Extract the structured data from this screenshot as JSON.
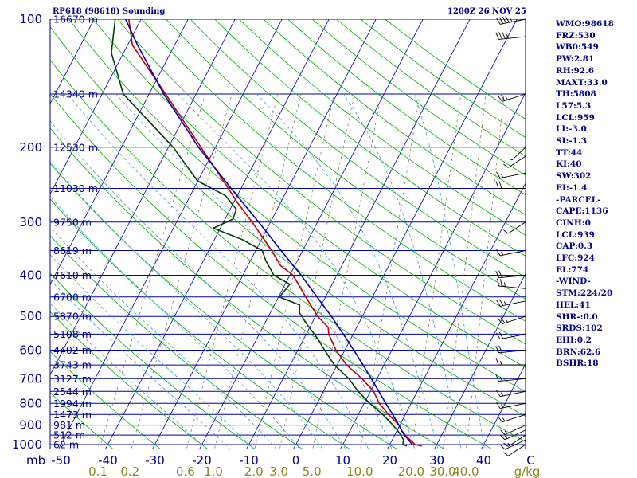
{
  "header": {
    "station": "RP618 (98618) Sounding",
    "time": "1200Z 26 NOV 25"
  },
  "params": [
    "WMO:98618",
    "FRZ:530",
    "WB0:549",
    "PW:2.81",
    "RH:92.6",
    "MAXT:33.0",
    "TH:5808",
    "L57:5.3",
    "LCL:959",
    "LI:-3.0",
    "SI:-1.3",
    "TT:44",
    "KI:40",
    "SW:302",
    "EI:-1.4",
    "-PARCEL-",
    "CAPE:1136",
    "CINH:0",
    "LCL:939",
    "CAP:0.3",
    "LFC:924",
    "EL:774",
    "-WIND-",
    "STM:224/20",
    "HEL:41",
    "SHR-:0.0",
    "SRDS:102",
    "EHI:0.2",
    "BRN:62.6",
    "BSHR:18"
  ],
  "colors": {
    "isobar": "#0000a0",
    "skew_isotherm": "#0000a0",
    "dry_adiabat": "#00b000",
    "moist_adiabat": "#40a0d0",
    "mixing_ratio": "#808060",
    "temperature": "#c00000",
    "dewpoint": "#004000",
    "parcel": "#0000b0",
    "label_blue": "#000080",
    "label_olive": "#888820"
  },
  "chart_data": {
    "type": "line",
    "ylabel": "mb",
    "xlabel": "",
    "pressure_ticks": [
      100,
      200,
      300,
      400,
      500,
      600,
      700,
      800,
      900,
      1000
    ],
    "temperature_ticks": [
      -50,
      -40,
      -30,
      -20,
      -10,
      0,
      10,
      20,
      30,
      40,
      50
    ],
    "temperature_tick_labels": [
      "-50",
      "-40",
      "-30",
      "-20",
      "-10",
      "0",
      "10",
      "20",
      "30",
      "40",
      "C"
    ],
    "mixing_ratio_tick_labels": [
      "0.1",
      "0.2",
      "0.6",
      "1.0",
      "2.0",
      "3.0",
      "5.0",
      "10.0",
      "20.0",
      "30.0",
      "40.0",
      "g/kg"
    ],
    "heights": [
      {
        "p": 100,
        "label": "16670 m"
      },
      {
        "p": 150,
        "label": "14340 m"
      },
      {
        "p": 200,
        "label": "12530 m"
      },
      {
        "p": 250,
        "label": "11030 m"
      },
      {
        "p": 300,
        "label": "9750 m"
      },
      {
        "p": 350,
        "label": "8619 m"
      },
      {
        "p": 400,
        "label": "7610 m"
      },
      {
        "p": 450,
        "label": "6700 m"
      },
      {
        "p": 500,
        "label": "5870 m"
      },
      {
        "p": 550,
        "label": "5108 m"
      },
      {
        "p": 600,
        "label": "4402 m"
      },
      {
        "p": 650,
        "label": "3743 m"
      },
      {
        "p": 700,
        "label": "3127 m"
      },
      {
        "p": 750,
        "label": "2544 m"
      },
      {
        "p": 800,
        "label": "1994 m"
      },
      {
        "p": 850,
        "label": "1473 m"
      },
      {
        "p": 900,
        "label": "981 m"
      },
      {
        "p": 950,
        "label": "512 m"
      },
      {
        "p": 1000,
        "label": "62 m"
      }
    ],
    "series": [
      {
        "key": "temperature",
        "values": [
          {
            "p": 1008,
            "t": 27.0
          },
          {
            "p": 1000,
            "t": 25.4
          },
          {
            "p": 975,
            "t": 23.8
          },
          {
            "p": 950,
            "t": 22.2
          },
          {
            "p": 925,
            "t": 20.9
          },
          {
            "p": 900,
            "t": 19.8
          },
          {
            "p": 850,
            "t": 16.4
          },
          {
            "p": 800,
            "t": 13.2
          },
          {
            "p": 750,
            "t": 10.7
          },
          {
            "p": 700,
            "t": 6.8
          },
          {
            "p": 650,
            "t": 2.0
          },
          {
            "p": 600,
            "t": -1.9
          },
          {
            "p": 550,
            "t": -5.2
          },
          {
            "p": 530,
            "t": -6.1
          },
          {
            "p": 500,
            "t": -9.5
          },
          {
            "p": 450,
            "t": -14.2
          },
          {
            "p": 400,
            "t": -19.3
          },
          {
            "p": 380,
            "t": -23.0
          },
          {
            "p": 350,
            "t": -26.6
          },
          {
            "p": 300,
            "t": -33.9
          },
          {
            "p": 270,
            "t": -39.2
          },
          {
            "p": 250,
            "t": -42.7
          },
          {
            "p": 200,
            "t": -53.1
          },
          {
            "p": 150,
            "t": -66.5
          },
          {
            "p": 115,
            "t": -79.0
          },
          {
            "p": 100,
            "t": -82.6
          }
        ]
      },
      {
        "key": "dewpoint",
        "values": [
          {
            "p": 1008,
            "t": 23.8
          },
          {
            "p": 1000,
            "t": 22.8
          },
          {
            "p": 975,
            "t": 22.4
          },
          {
            "p": 950,
            "t": 21.3
          },
          {
            "p": 925,
            "t": 20.0
          },
          {
            "p": 900,
            "t": 18.5
          },
          {
            "p": 850,
            "t": 15.2
          },
          {
            "p": 800,
            "t": 11.2
          },
          {
            "p": 750,
            "t": 7.4
          },
          {
            "p": 700,
            "t": 4.0
          },
          {
            "p": 650,
            "t": -0.6
          },
          {
            "p": 600,
            "t": -4.3
          },
          {
            "p": 560,
            "t": -7.4
          },
          {
            "p": 520,
            "t": -11.1
          },
          {
            "p": 490,
            "t": -13.8
          },
          {
            "p": 470,
            "t": -14.6
          },
          {
            "p": 450,
            "t": -19.8
          },
          {
            "p": 420,
            "t": -19.0
          },
          {
            "p": 400,
            "t": -23.4
          },
          {
            "p": 370,
            "t": -26.7
          },
          {
            "p": 350,
            "t": -28.6
          },
          {
            "p": 330,
            "t": -34.0
          },
          {
            "p": 310,
            "t": -41.5
          },
          {
            "p": 295,
            "t": -38.3
          },
          {
            "p": 280,
            "t": -38.7
          },
          {
            "p": 260,
            "t": -42.5
          },
          {
            "p": 240,
            "t": -50.1
          },
          {
            "p": 200,
            "t": -59.0
          },
          {
            "p": 150,
            "t": -75.5
          },
          {
            "p": 120,
            "t": -82.6
          },
          {
            "p": 100,
            "t": -85.5
          }
        ]
      },
      {
        "key": "parcel",
        "values": [
          {
            "p": 1000,
            "t": 24.8
          },
          {
            "p": 939,
            "t": 21.5
          },
          {
            "p": 900,
            "t": 19.8
          },
          {
            "p": 850,
            "t": 17.3
          },
          {
            "p": 800,
            "t": 14.6
          },
          {
            "p": 750,
            "t": 11.8
          },
          {
            "p": 700,
            "t": 8.8
          },
          {
            "p": 650,
            "t": 5.5
          },
          {
            "p": 600,
            "t": 1.9
          },
          {
            "p": 550,
            "t": -2.1
          },
          {
            "p": 500,
            "t": -6.6
          },
          {
            "p": 450,
            "t": -11.8
          },
          {
            "p": 400,
            "t": -17.6
          },
          {
            "p": 350,
            "t": -24.6
          },
          {
            "p": 300,
            "t": -32.5
          },
          {
            "p": 250,
            "t": -42.1
          },
          {
            "p": 200,
            "t": -53.6
          },
          {
            "p": 150,
            "t": -66.9
          },
          {
            "p": 115,
            "t": -77.9
          },
          {
            "p": 100,
            "t": -83.3
          }
        ]
      }
    ],
    "wind_barbs": [
      {
        "p": 100,
        "dir": 250,
        "spd": 45
      },
      {
        "p": 110,
        "dir": 260,
        "spd": 35
      },
      {
        "p": 150,
        "dir": 240,
        "spd": 25
      },
      {
        "p": 200,
        "dir": 210,
        "spd": 5
      },
      {
        "p": 210,
        "dir": 220,
        "spd": 10
      },
      {
        "p": 230,
        "dir": 250,
        "spd": 15
      },
      {
        "p": 250,
        "dir": 270,
        "spd": 20
      },
      {
        "p": 300,
        "dir": 220,
        "spd": 10
      },
      {
        "p": 350,
        "dir": 250,
        "spd": 15
      },
      {
        "p": 400,
        "dir": 260,
        "spd": 20
      },
      {
        "p": 430,
        "dir": 280,
        "spd": 25
      },
      {
        "p": 460,
        "dir": 250,
        "spd": 25
      },
      {
        "p": 500,
        "dir": 240,
        "spd": 25
      },
      {
        "p": 550,
        "dir": 250,
        "spd": 20
      },
      {
        "p": 600,
        "dir": 260,
        "spd": 20
      },
      {
        "p": 650,
        "dir": 270,
        "spd": 15
      },
      {
        "p": 700,
        "dir": 260,
        "spd": 15
      },
      {
        "p": 750,
        "dir": 250,
        "spd": 15
      },
      {
        "p": 800,
        "dir": 250,
        "spd": 15
      },
      {
        "p": 850,
        "dir": 240,
        "spd": 15
      },
      {
        "p": 900,
        "dir": 230,
        "spd": 15
      },
      {
        "p": 925,
        "dir": 230,
        "spd": 15
      },
      {
        "p": 950,
        "dir": 220,
        "spd": 15
      },
      {
        "p": 975,
        "dir": 230,
        "spd": 10
      },
      {
        "p": 1000,
        "dir": 220,
        "spd": 10
      }
    ]
  }
}
